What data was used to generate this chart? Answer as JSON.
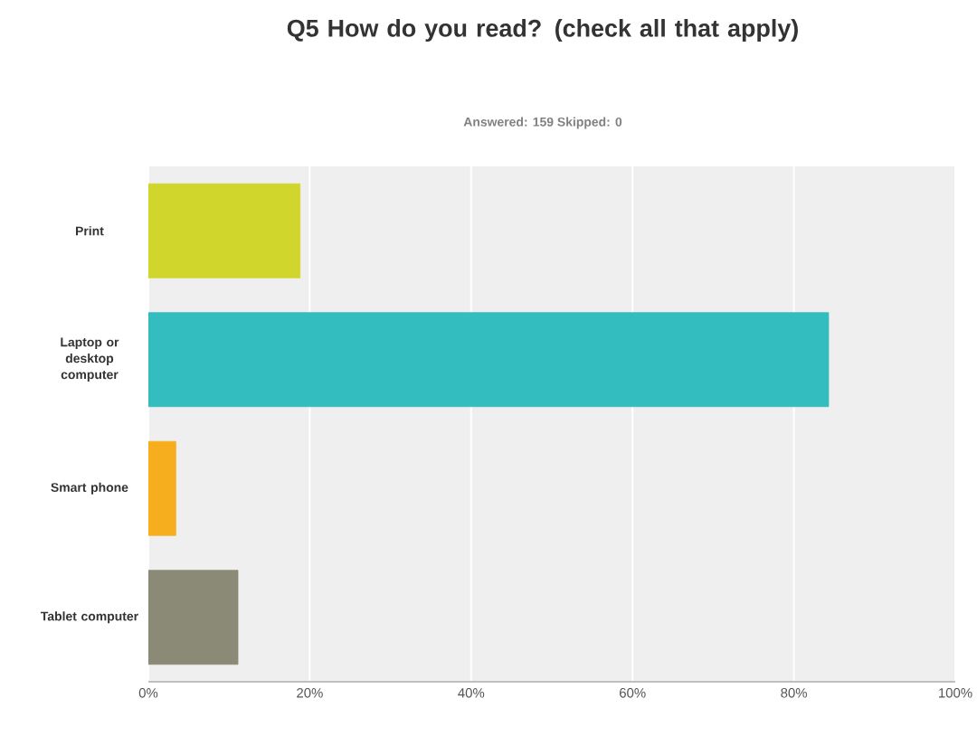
{
  "chart_data": {
    "type": "bar",
    "orientation": "horizontal",
    "title": "Q5 How do you read? (check all that apply)",
    "subtitle": "Answered: 159    Skipped: 0",
    "categories": [
      "Print",
      "Laptop or desktop computer",
      "Smart phone",
      "Tablet computer"
    ],
    "values": [
      18.8,
      84.3,
      3.4,
      11.1
    ],
    "colors": [
      "#d0d62b",
      "#33bdbf",
      "#f7ae1e",
      "#8a8a76"
    ],
    "xlim": [
      0,
      100
    ],
    "xticks": [
      {
        "value": 0,
        "label": "0%"
      },
      {
        "value": 20,
        "label": "20%"
      },
      {
        "value": 40,
        "label": "40%"
      },
      {
        "value": 60,
        "label": "60%"
      },
      {
        "value": 80,
        "label": "80%"
      },
      {
        "value": 100,
        "label": "100%"
      }
    ],
    "grid": "x"
  }
}
